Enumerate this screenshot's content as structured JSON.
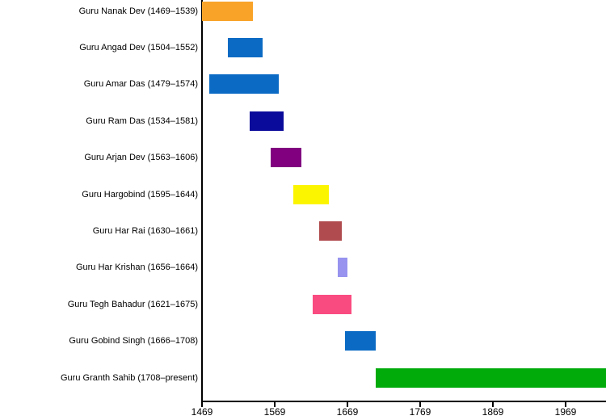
{
  "chart_data": {
    "type": "bar",
    "orientation": "horizontal-timeline",
    "title": "",
    "xlabel": "",
    "ylabel": "",
    "xlim": [
      1469,
      2025
    ],
    "xticks": [
      1469,
      1569,
      1669,
      1769,
      1869,
      1969
    ],
    "grid": false,
    "legend": false,
    "bars": [
      {
        "label": "Guru Nanak Dev (1469–1539)",
        "start": 1469,
        "end": 1539,
        "color": "#F9A329"
      },
      {
        "label": "Guru Angad Dev (1504–1552)",
        "start": 1504,
        "end": 1552,
        "color": "#0B6BC4"
      },
      {
        "label": "Guru Amar Das (1479–1574)",
        "start": 1479,
        "end": 1574,
        "color": "#0B6BC4"
      },
      {
        "label": "Guru Ram Das (1534–1581)",
        "start": 1534,
        "end": 1581,
        "color": "#0B0B9B"
      },
      {
        "label": "Guru Arjan Dev (1563–1606)",
        "start": 1563,
        "end": 1606,
        "color": "#800080"
      },
      {
        "label": "Guru Hargobind (1595–1644)",
        "start": 1595,
        "end": 1644,
        "color": "#FCF500"
      },
      {
        "label": "Guru Har Rai (1630–1661)",
        "start": 1630,
        "end": 1661,
        "color": "#B04C50"
      },
      {
        "label": "Guru Har Krishan (1656–1664)",
        "start": 1656,
        "end": 1664,
        "color": "#9793EF"
      },
      {
        "label": "Guru Tegh Bahadur (1621–1675)",
        "start": 1621,
        "end": 1675,
        "color": "#FA4B80"
      },
      {
        "label": "Guru Gobind Singh (1666–1708)",
        "start": 1666,
        "end": 1708,
        "color": "#0B6BC4"
      },
      {
        "label": "Guru Granth Sahib (1708–present)",
        "start": 1708,
        "end": "present",
        "color": "#00AB0A"
      }
    ],
    "colors": {
      "background": "#FFFFFF",
      "axis": "#000000",
      "text": "#000000"
    }
  }
}
